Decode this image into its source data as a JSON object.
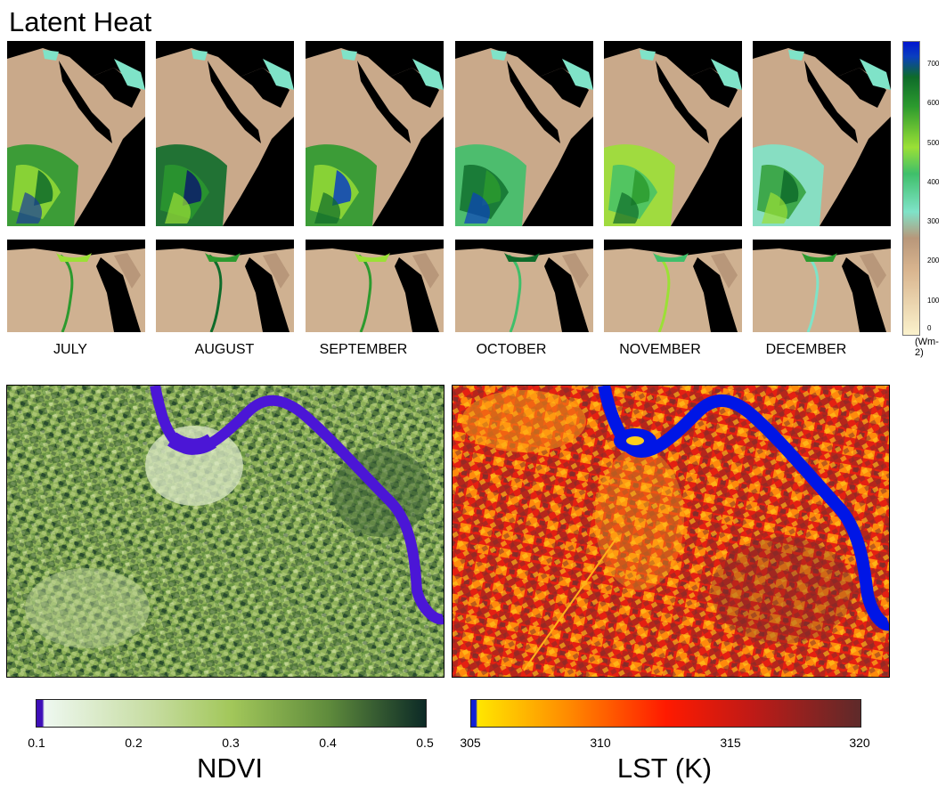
{
  "title": "Latent Heat",
  "months": [
    "JULY",
    "AUGUST",
    "SEPTEMBER",
    "OCTOBER",
    "NOVEMBER",
    "DECEMBER"
  ],
  "latent_heat_colorbar": {
    "ticks": [
      "700",
      "600",
      "500",
      "400",
      "300",
      "200",
      "100",
      "0"
    ],
    "unit": "(Wm-2)",
    "colors": [
      "#fbf2cc",
      "#d9b58f",
      "#b8977a",
      "#7fe3c8",
      "#3fbf6a",
      "#9be036",
      "#0e6b2a",
      "#0a3fbf",
      "#0015d0"
    ]
  },
  "ndvi_colorbar": {
    "ticks": [
      "0.1",
      "0.2",
      "0.3",
      "0.4",
      "0.5"
    ],
    "label": "NDVI",
    "colors": [
      "#3e0fb8",
      "#eef8f0",
      "#c6dca0",
      "#a2c75a",
      "#5f8b3c",
      "#0c2a26"
    ]
  },
  "lst_colorbar": {
    "ticks": [
      "305",
      "310",
      "315",
      "320"
    ],
    "label": "LST (K)",
    "colors": [
      "#1020d8",
      "#ffe600",
      "#ff8a00",
      "#ff1a00",
      "#c01a16",
      "#5e2a2a"
    ]
  }
}
